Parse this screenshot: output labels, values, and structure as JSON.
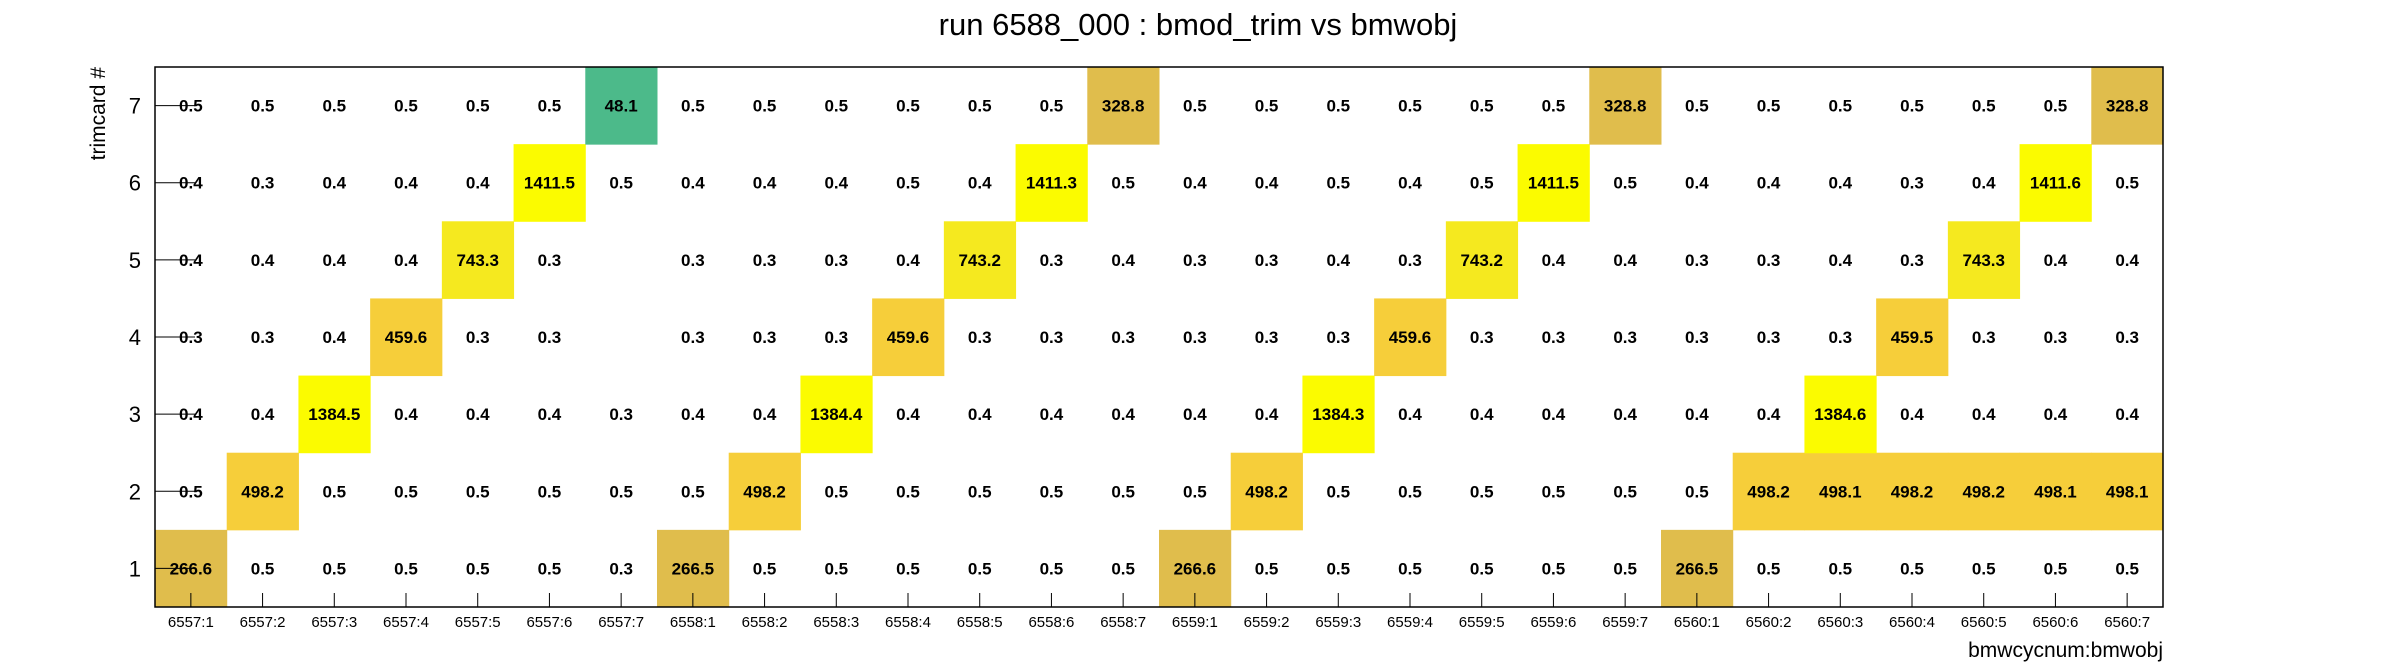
{
  "chart_data": {
    "type": "heatmap",
    "title": "run 6588_000 : bmod_trim vs bmwobj",
    "xlabel": "bmwcycnum:bmwobj",
    "ylabel": "trimcard #",
    "x_categories": [
      "6557:1",
      "6557:2",
      "6557:3",
      "6557:4",
      "6557:5",
      "6557:6",
      "6557:7",
      "6558:1",
      "6558:2",
      "6558:3",
      "6558:4",
      "6558:5",
      "6558:6",
      "6558:7",
      "6559:1",
      "6559:2",
      "6559:3",
      "6559:4",
      "6559:5",
      "6559:6",
      "6559:7",
      "6560:1",
      "6560:2",
      "6560:3",
      "6560:4",
      "6560:5",
      "6560:6",
      "6560:7"
    ],
    "y_categories": [
      "1",
      "2",
      "3",
      "4",
      "5",
      "6",
      "7"
    ],
    "values": {
      "7": [
        "0.5",
        "0.5",
        "0.5",
        "0.5",
        "0.5",
        "0.5",
        "48.1",
        "0.5",
        "0.5",
        "0.5",
        "0.5",
        "0.5",
        "0.5",
        "328.8",
        "0.5",
        "0.5",
        "0.5",
        "0.5",
        "0.5",
        "0.5",
        "328.8",
        "0.5",
        "0.5",
        "0.5",
        "0.5",
        "0.5",
        "0.5",
        "328.8"
      ],
      "6": [
        "0.4",
        "0.3",
        "0.4",
        "0.4",
        "0.4",
        "1411.5",
        "0.5",
        "0.4",
        "0.4",
        "0.4",
        "0.5",
        "0.4",
        "1411.3",
        "0.5",
        "0.4",
        "0.4",
        "0.5",
        "0.4",
        "0.5",
        "1411.5",
        "0.5",
        "0.4",
        "0.4",
        "0.4",
        "0.3",
        "0.4",
        "1411.6",
        "0.5"
      ],
      "5": [
        "0.4",
        "0.4",
        "0.4",
        "0.4",
        "743.3",
        "0.3",
        "",
        "0.3",
        "0.3",
        "0.3",
        "0.4",
        "743.2",
        "0.3",
        "0.4",
        "0.3",
        "0.3",
        "0.4",
        "0.3",
        "743.2",
        "0.4",
        "0.4",
        "0.3",
        "0.3",
        "0.4",
        "0.3",
        "743.3",
        "0.4",
        "0.4"
      ],
      "4": [
        "0.3",
        "0.3",
        "0.4",
        "459.6",
        "0.3",
        "0.3",
        "",
        "0.3",
        "0.3",
        "0.3",
        "459.6",
        "0.3",
        "0.3",
        "0.3",
        "0.3",
        "0.3",
        "0.3",
        "459.6",
        "0.3",
        "0.3",
        "0.3",
        "0.3",
        "0.3",
        "0.3",
        "459.5",
        "0.3",
        "0.3",
        "0.3"
      ],
      "3": [
        "0.4",
        "0.4",
        "1384.5",
        "0.4",
        "0.4",
        "0.4",
        "0.3",
        "0.4",
        "0.4",
        "1384.4",
        "0.4",
        "0.4",
        "0.4",
        "0.4",
        "0.4",
        "0.4",
        "1384.3",
        "0.4",
        "0.4",
        "0.4",
        "0.4",
        "0.4",
        "0.4",
        "1384.6",
        "0.4",
        "0.4",
        "0.4",
        "0.4"
      ],
      "2": [
        "0.5",
        "498.2",
        "0.5",
        "0.5",
        "0.5",
        "0.5",
        "0.5",
        "0.5",
        "498.2",
        "0.5",
        "0.5",
        "0.5",
        "0.5",
        "0.5",
        "0.5",
        "498.2",
        "0.5",
        "0.5",
        "0.5",
        "0.5",
        "0.5",
        "0.5",
        "498.2",
        "498.1",
        "498.2",
        "498.2",
        "498.1",
        "498.1"
      ],
      "1": [
        "266.6",
        "0.5",
        "0.5",
        "0.5",
        "0.5",
        "0.5",
        "0.3",
        "266.5",
        "0.5",
        "0.5",
        "0.5",
        "0.5",
        "0.5",
        "0.5",
        "266.6",
        "0.5",
        "0.5",
        "0.5",
        "0.5",
        "0.5",
        "0.5",
        "266.5",
        "0.5",
        "0.5",
        "0.5",
        "0.5",
        "0.5",
        "0.5"
      ]
    },
    "color_thresholds": {
      "low": "#ffffff",
      "mid_dark": "#e0bd4c",
      "mid": "#f6ce3a",
      "high": "#f5e91f",
      "highest": "#fbfb00",
      "low_teal": "#4cba8a"
    },
    "grid": false,
    "legend": "none"
  }
}
